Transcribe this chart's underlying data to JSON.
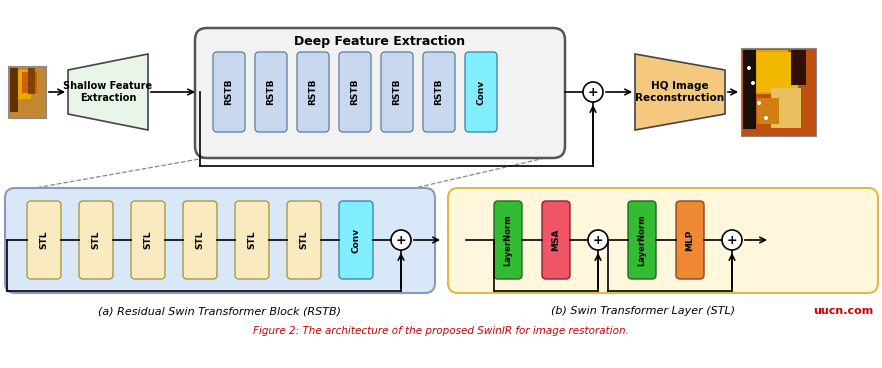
{
  "title": "Figure 2: The architecture of the proposed SwinIR for image restoration.",
  "caption_a": "(a) Residual Swin Transformer Block (RSTB)",
  "caption_b": "(b) Swin Transformer Layer (STL)",
  "watermark": "uucn.com",
  "deep_feature_label": "Deep Feature Extraction",
  "shallow_label": "Shallow Feature\nExtraction",
  "hq_label": "HQ Image\nReconstruction",
  "conv_label": "Conv",
  "conv_color": "#80EEFF",
  "rstb_color": "#C8D8EE",
  "stl_color": "#FAEAC0",
  "shallow_bg": "#E8F5E8",
  "hq_bg": "#F5C880",
  "stl_region_bg": "#D8E8F8",
  "stl_region_border": "#8899BB",
  "swin_region_bg": "#FFF8DC",
  "swin_region_border": "#DDBB44",
  "layernorm_color": "#33BB33",
  "msa_color": "#EE5566",
  "mlp_color": "#EE8833",
  "dfe_bg": "#F2F2F2",
  "dfe_border": "#555555",
  "background": "#FFFFFF",
  "fig_width": 8.82,
  "fig_height": 3.68
}
